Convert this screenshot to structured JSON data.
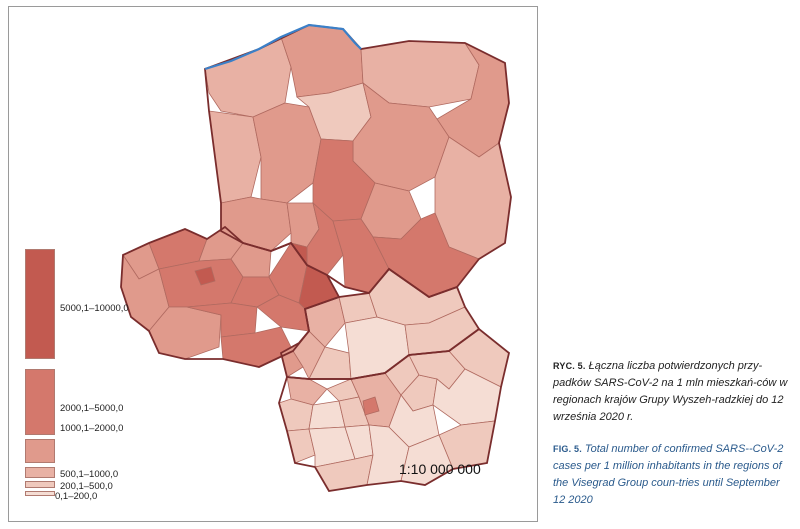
{
  "colors": {
    "class_5000_10000": "#c25a50",
    "class_2000_5000": "#d4786c",
    "class_1000_2000": "#e09a8c",
    "class_500_1000": "#e8b1a4",
    "class_200_500": "#efc9bd",
    "class_0_200": "#f5ddd4",
    "border": "#7a2d2d",
    "sea": "#3b80c8",
    "caption_en": "#2a5a8c"
  },
  "legend": {
    "items": [
      {
        "label": "5000,1–10000,0",
        "color_key": "class_5000_10000"
      },
      {
        "label": "2000,1–5000,0",
        "color_key": "class_2000_5000"
      },
      {
        "label": "1000,1–2000,0",
        "color_key": "class_1000_2000"
      },
      {
        "label": "500,1–1000,0",
        "color_key": "class_500_1000"
      },
      {
        "label": "200,1–500,0",
        "color_key": "class_200_500"
      },
      {
        "label": "0,1–200,0",
        "color_key": "class_0_200"
      }
    ]
  },
  "map": {
    "scale": "1:10 000 000"
  },
  "caption": {
    "pl_label": "RYC. 5.",
    "pl_text": "Łączna liczba potwierdzonych przy-padków SARS-CoV-2 na 1 mln mieszkań-ców w regionach krajów Grupy Wyszeh-radzkiej do 12 września 2020 r.",
    "en_label": "FIG. 5.",
    "en_text": "Total number of confirmed SARS--CoV-2 cases per 1 million inhabitants in the regions of the Visegrad Group coun-tries until September 12 2020"
  }
}
